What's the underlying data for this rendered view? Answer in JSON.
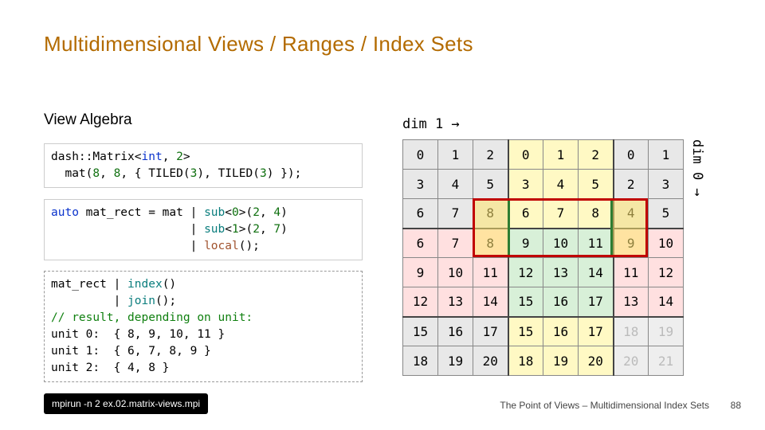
{
  "title": {
    "text": "Multidimensional Views / Ranges / Index Sets",
    "color": "#b36b00"
  },
  "subtitle": "View Algebra",
  "code1": {
    "line1a": "dash::Matrix<",
    "int": "int",
    "line1b": ", ",
    "two": "2",
    "line1c": ">",
    "line2a": "  mat(",
    "n8a": "8",
    "c1": ", ",
    "n8b": "8",
    "c2": ", { TILED(",
    "n3a": "3",
    "c3": "), TILED(",
    "n3b": "3",
    "c4": ") });"
  },
  "code2": {
    "l1a": "auto",
    "l1b": " mat_rect = mat | ",
    "sub0": "sub",
    "l1c": "<",
    "z": "0",
    "l1d": ">(",
    "n2a": "2",
    "l1e": ", ",
    "n4": "4",
    "l1f": ")",
    "l2a": "                    | ",
    "sub1": "sub",
    "l2b": "<",
    "one": "1",
    "l2c": ">(",
    "n2b": "2",
    "l2d": ", ",
    "n7": "7",
    "l2e": ")",
    "l3a": "                    | ",
    "local": "local",
    "l3b": "();"
  },
  "code3": {
    "l1": "mat_rect | ",
    "index": "index",
    "p1": "()",
    "l2": "         | ",
    "join": "join",
    "p2": "();",
    "comment": "// result, depending on unit:",
    "u0": "unit 0:  { 8, 9, 10, 11 }",
    "u1": "unit 1:  { 6, 7, 8, 9 }",
    "u2": "unit 2:  { 4, 8 }"
  },
  "cmd": "mpirun -n 2 ex.02.matrix-views.mpi",
  "footer": "The Point of Views – Multidimensional Index Sets",
  "page": "88",
  "dim1_label": "dim 1 →",
  "dim0_label": "dim 0 →",
  "matrix": {
    "rows": [
      [
        0,
        1,
        2,
        0,
        1,
        2,
        0,
        1
      ],
      [
        3,
        4,
        5,
        3,
        4,
        5,
        2,
        3
      ],
      [
        6,
        7,
        8,
        6,
        7,
        8,
        4,
        5
      ],
      [
        6,
        7,
        8,
        9,
        10,
        11,
        9,
        10
      ],
      [
        9,
        10,
        11,
        12,
        13,
        14,
        11,
        12
      ],
      [
        12,
        13,
        14,
        15,
        16,
        17,
        13,
        14
      ],
      [
        15,
        16,
        17,
        15,
        16,
        17,
        18,
        19
      ],
      [
        18,
        19,
        20,
        18,
        19,
        20,
        20,
        21
      ]
    ],
    "tile_colors": {
      "tA": "#e8e8e8",
      "tB": "#fff9c4",
      "tC": "#ffe0e0",
      "tD": "#d8f0d8"
    },
    "greyout_right_column_from_row6": true
  },
  "selections": {
    "red": {
      "row_start": 2,
      "row_end": 3,
      "col_start": 2,
      "col_end": 6
    },
    "green": {
      "row_start": 2,
      "row_end": 3,
      "col_start": 3,
      "col_end": 5
    },
    "yellow_rows": [
      2,
      3
    ],
    "yellow_cols": [
      2,
      6
    ]
  }
}
